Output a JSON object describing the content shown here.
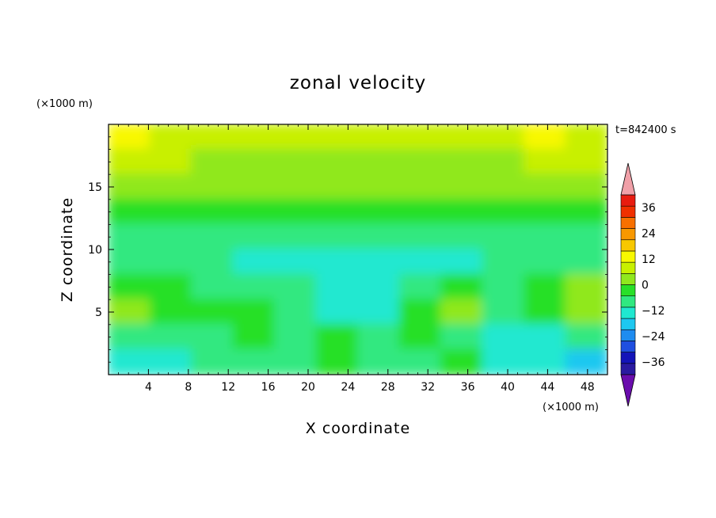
{
  "chart_data": {
    "type": "heatmap",
    "title": "zonal velocity",
    "xlabel": "X coordinate",
    "ylabel": "Z coordinate",
    "x_unit": "(×1000 m)",
    "y_unit": "(×1000 m)",
    "time_label": "t=842400 s",
    "xlim": [
      0,
      50
    ],
    "ylim": [
      0,
      20
    ],
    "x_ticks": [
      4,
      8,
      12,
      16,
      20,
      24,
      28,
      32,
      36,
      40,
      44,
      48
    ],
    "y_ticks": [
      5,
      10,
      15
    ],
    "colorbar": {
      "min": -42,
      "max": 42,
      "step": 6,
      "tick_labels": [
        36,
        24,
        12,
        0,
        -12,
        -24,
        -36
      ],
      "extend": "both",
      "colors_low_to_high": [
        "#6a0dad",
        "#2a1aa0",
        "#1414b8",
        "#1f4fe0",
        "#1e8cf0",
        "#1ec8f0",
        "#20e8d0",
        "#30e880",
        "#28e028",
        "#90e81e",
        "#c8f000",
        "#f8f800",
        "#f8c800",
        "#f89800",
        "#f87000",
        "#f03000",
        "#e81c10",
        "#f0a0a8"
      ]
    },
    "field_rows_top_to_bottom": [
      [
        18,
        16,
        14,
        12,
        12,
        12,
        12,
        14,
        14,
        16,
        18,
        16
      ],
      [
        14,
        12,
        10,
        10,
        10,
        10,
        10,
        10,
        10,
        10,
        12,
        12
      ],
      [
        8,
        8,
        6,
        6,
        6,
        6,
        6,
        6,
        6,
        6,
        6,
        8
      ],
      [
        2,
        2,
        2,
        4,
        4,
        4,
        2,
        2,
        2,
        2,
        2,
        4
      ],
      [
        -2,
        -2,
        -2,
        -4,
        -4,
        -6,
        -4,
        -4,
        -4,
        -4,
        -2,
        -2
      ],
      [
        -4,
        -6,
        -6,
        -8,
        -8,
        -10,
        -8,
        -8,
        -8,
        -6,
        -6,
        -4
      ],
      [
        4,
        2,
        -2,
        -4,
        -6,
        -12,
        -8,
        -6,
        2,
        -2,
        4,
        6
      ],
      [
        6,
        4,
        2,
        0,
        -2,
        -8,
        -10,
        2,
        6,
        -6,
        0,
        6
      ],
      [
        -2,
        -4,
        -2,
        0,
        -4,
        4,
        -6,
        4,
        -4,
        -10,
        -8,
        -6
      ],
      [
        -8,
        -8,
        -6,
        -4,
        -4,
        0,
        -2,
        -4,
        0,
        -10,
        -12,
        -16
      ]
    ]
  }
}
